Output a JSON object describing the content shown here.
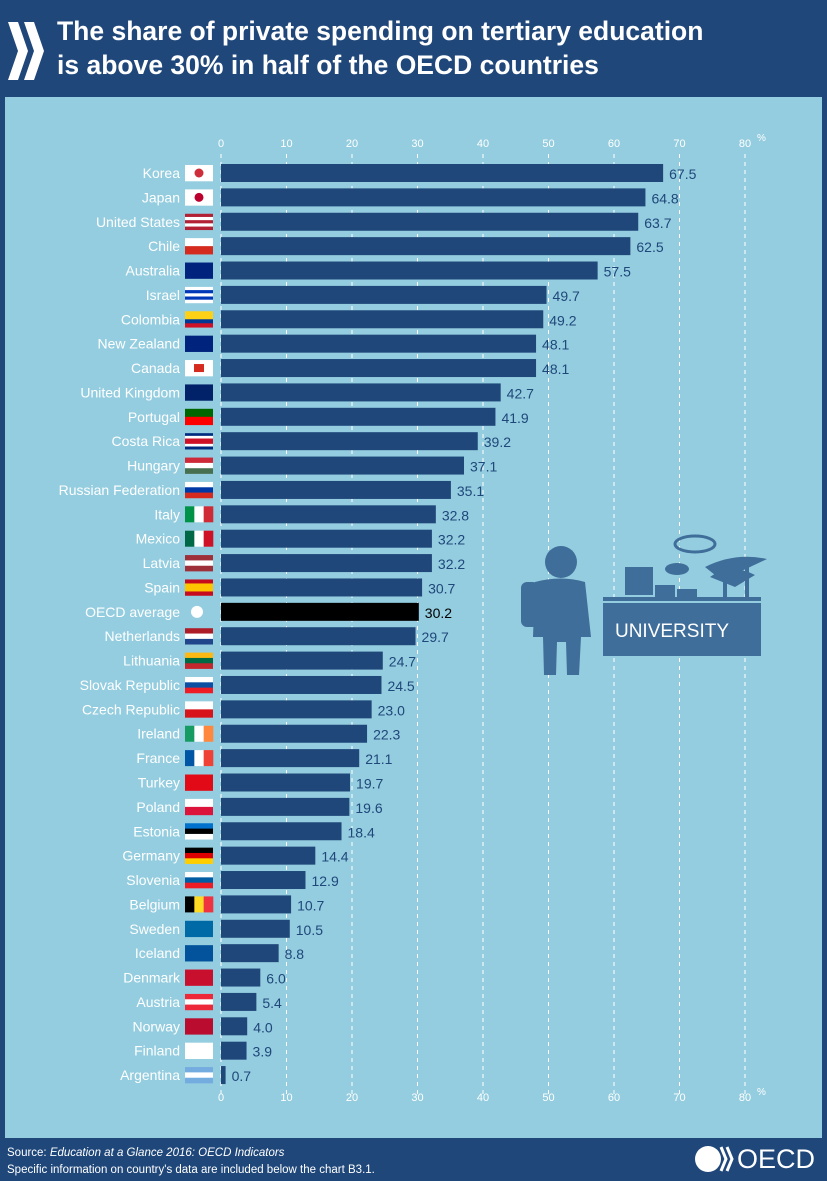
{
  "header": {
    "title_line1": "The share of private spending on tertiary education",
    "title_line2": "is above 30% in half of the OECD countries"
  },
  "footer": {
    "source_prefix": "Source: ",
    "source_title": "Education at a Glance 2016: OECD Indicators",
    "note": "Specific information on country's data are included below the chart B3.1.",
    "logo_text": "OECD"
  },
  "illustration": {
    "sign_text": "UNIVERSITY"
  },
  "colors": {
    "bar": "#1f477a",
    "highlight": "#000000",
    "value_label": "#1f477a",
    "panel": "#94cddf",
    "header": "#1f477a"
  },
  "chart_data": {
    "type": "bar",
    "orientation": "horizontal",
    "title": "The share of private spending on tertiary education is above 30% in half of the OECD countries",
    "xlabel": "%",
    "xlim": [
      0,
      80
    ],
    "ticks": [
      0,
      10,
      20,
      30,
      40,
      50,
      60,
      70,
      80
    ],
    "grid": true,
    "categories": [
      "Korea",
      "Japan",
      "United States",
      "Chile",
      "Australia",
      "Israel",
      "Colombia",
      "New Zealand",
      "Canada",
      "United Kingdom",
      "Portugal",
      "Costa Rica",
      "Hungary",
      "Russian Federation",
      "Italy",
      "Mexico",
      "Latvia",
      "Spain",
      "OECD average",
      "Netherlands",
      "Lithuania",
      "Slovak Republic",
      "Czech Republic",
      "Ireland",
      "France",
      "Turkey",
      "Poland",
      "Estonia",
      "Germany",
      "Slovenia",
      "Belgium",
      "Sweden",
      "Iceland",
      "Denmark",
      "Austria",
      "Norway",
      "Finland",
      "Argentina"
    ],
    "values": [
      67.5,
      64.8,
      63.7,
      62.5,
      57.5,
      49.7,
      49.2,
      48.1,
      48.1,
      42.7,
      41.9,
      39.2,
      37.1,
      35.1,
      32.8,
      32.2,
      32.2,
      30.7,
      30.2,
      29.7,
      24.7,
      24.5,
      23.0,
      22.3,
      21.1,
      19.7,
      19.6,
      18.4,
      14.4,
      12.9,
      10.7,
      10.5,
      8.8,
      6.0,
      5.4,
      4.0,
      3.9,
      0.7
    ],
    "value_labels": [
      "67.5",
      "64.8",
      "63.7",
      "62.5",
      "57.5",
      "49.7",
      "49.2",
      "48.1",
      "48.1",
      "42.7",
      "41.9",
      "39.2",
      "37.1",
      "35.1",
      "32.8",
      "32.2",
      "32.2",
      "30.7",
      "30.2",
      "29.7",
      "24.7",
      "24.5",
      "23.0",
      "22.3",
      "21.1",
      "19.7",
      "19.6",
      "18.4",
      "14.4",
      "12.9",
      "10.7",
      "10.5",
      "8.8",
      "6.0",
      "5.4",
      "4.0",
      "3.9",
      "0.7"
    ],
    "highlight": "OECD average"
  },
  "flags": {
    "Korea": [
      "#fff"
    ],
    "Japan": [
      "#fff"
    ],
    "United States": [
      "#b22234",
      "#fff",
      "#b22234",
      "#fff",
      "#b22234"
    ],
    "Chile": [
      "#fff",
      "#d52b1e"
    ],
    "Australia": [
      "#00247d"
    ],
    "Israel": [
      "#fff",
      "#0038b8",
      "#fff",
      "#0038b8",
      "#fff"
    ],
    "Colombia": [
      "#fcd116",
      "#fcd116",
      "#003893",
      "#ce1126"
    ],
    "New Zealand": [
      "#00247d"
    ],
    "Canada": [
      "#fff"
    ],
    "United Kingdom": [
      "#012169"
    ],
    "Portugal": [
      "#006600",
      "#ff0000"
    ],
    "Costa Rica": [
      "#002b7f",
      "#fff",
      "#ce1126",
      "#ce1126",
      "#fff",
      "#002b7f"
    ],
    "Hungary": [
      "#ce2939",
      "#fff",
      "#477050"
    ],
    "Russian Federation": [
      "#fff",
      "#0039a6",
      "#d52b1e"
    ],
    "Italy": [
      "v",
      "#009246",
      "#fff",
      "#ce2b37"
    ],
    "Mexico": [
      "v",
      "#006847",
      "#fff",
      "#ce1126"
    ],
    "Latvia": [
      "#9e3039",
      "#fff",
      "#9e3039"
    ],
    "Spain": [
      "#c60b1e",
      "#ffc400",
      "#ffc400",
      "#c60b1e"
    ],
    "OECD average": [
      "#94cddf"
    ],
    "Netherlands": [
      "#ae1c28",
      "#fff",
      "#21468b"
    ],
    "Lithuania": [
      "#fdb913",
      "#006a44",
      "#c1272d"
    ],
    "Slovak Republic": [
      "#fff",
      "#0b4ea2",
      "#ee1c25"
    ],
    "Czech Republic": [
      "#fff",
      "#d7141a"
    ],
    "Ireland": [
      "v",
      "#169b62",
      "#fff",
      "#ff883e"
    ],
    "France": [
      "v",
      "#0055a4",
      "#fff",
      "#ef4135"
    ],
    "Turkey": [
      "#e30a17"
    ],
    "Poland": [
      "#fff",
      "#dc143c"
    ],
    "Estonia": [
      "#0072ce",
      "#000",
      "#fff"
    ],
    "Germany": [
      "#000",
      "#dd0000",
      "#ffce00"
    ],
    "Slovenia": [
      "#fff",
      "#005da4",
      "#ed1c24"
    ],
    "Belgium": [
      "v",
      "#000",
      "#fdda24",
      "#ef3340"
    ],
    "Sweden": [
      "#006aa7"
    ],
    "Iceland": [
      "#02529c"
    ],
    "Denmark": [
      "#c8102e"
    ],
    "Austria": [
      "#ed2939",
      "#fff",
      "#ed2939"
    ],
    "Norway": [
      "#ba0c2f"
    ],
    "Finland": [
      "#fff"
    ],
    "Argentina": [
      "#74acdf",
      "#fff",
      "#74acdf"
    ]
  }
}
